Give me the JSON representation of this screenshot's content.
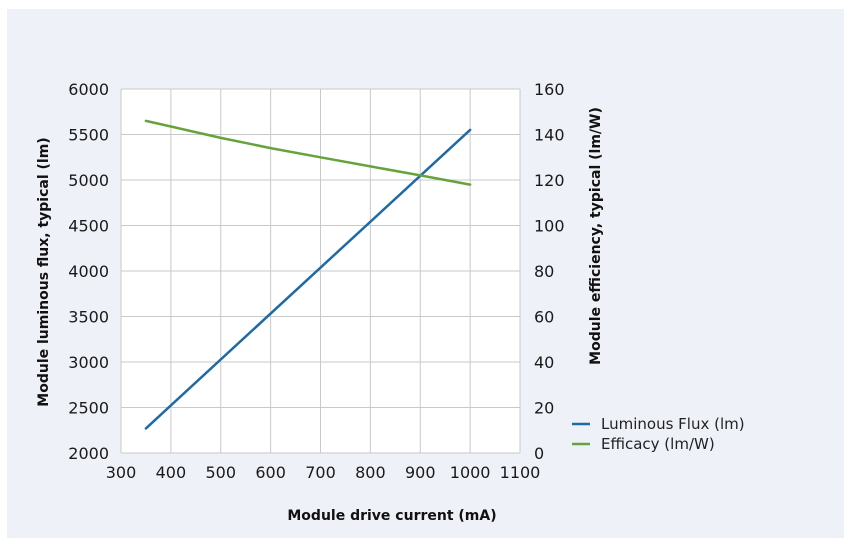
{
  "chart_data": {
    "type": "line",
    "xlabel": "Module drive current (mA)",
    "ylabel_left": "Module luminous flux, typical (lm)",
    "ylabel_right": "Module efficiency, typical (lm/W)",
    "xlim": [
      300,
      1100
    ],
    "ylim_left": [
      2000,
      6000
    ],
    "ylim_right": [
      0,
      160
    ],
    "x_ticks": [
      300,
      400,
      500,
      600,
      700,
      800,
      900,
      1000,
      1100
    ],
    "y_left_ticks": [
      2000,
      2500,
      3000,
      3500,
      4000,
      4500,
      5000,
      5500,
      6000
    ],
    "y_right_ticks": [
      0,
      20,
      40,
      60,
      80,
      100,
      120,
      140,
      160
    ],
    "grid": true,
    "legend_position": "bottom-right",
    "series": [
      {
        "name": "Luminous Flux (lm)",
        "axis": "left",
        "color": "#1f6aa5",
        "x": [
          350,
          1000
        ],
        "y": [
          2270,
          5550
        ]
      },
      {
        "name": "Efficacy (lm/W)",
        "axis": "right",
        "color": "#66a33d",
        "x": [
          350,
          400,
          500,
          600,
          700,
          800,
          900,
          1000
        ],
        "y": [
          146,
          143.5,
          138.5,
          134,
          130,
          126,
          122,
          118
        ]
      }
    ]
  }
}
